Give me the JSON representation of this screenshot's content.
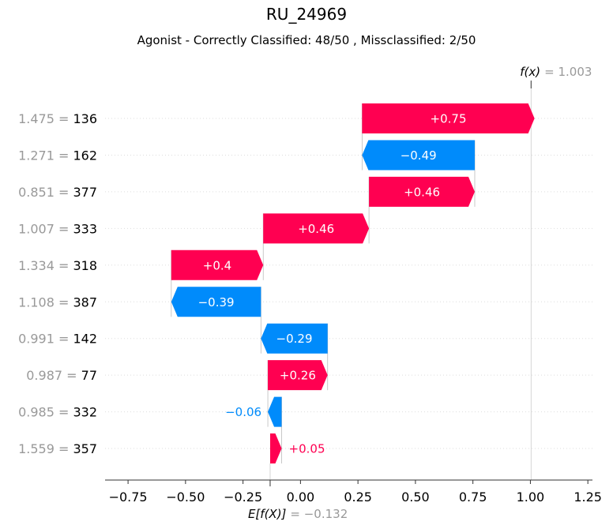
{
  "page": {
    "title": "RU_24969",
    "subtitle": "Agonist - Correctly Classified: 48/50 , Missclassified: 2/50"
  },
  "colors": {
    "positive": "#ff0051",
    "negative": "#008bfb",
    "muted": "#999999",
    "grid": "#dddddd"
  },
  "chart_data": {
    "type": "waterfall",
    "title": "RU_24969",
    "subtitle": "Agonist - Correctly Classified: 48/50 , Missclassified: 2/50",
    "fx_label": "f(x)",
    "fx_value": 1.003,
    "fx_text": "= 1.003",
    "efx_label": "E[f(X)]",
    "efx_value": -0.132,
    "efx_text": "= −0.132",
    "xlim": [
      -0.85,
      1.27
    ],
    "xticks": [
      -0.75,
      -0.5,
      -0.25,
      0.0,
      0.25,
      0.5,
      0.75,
      1.0,
      1.25
    ],
    "xtick_labels": [
      "−0.75",
      "−0.50",
      "−0.25",
      "0.00",
      "0.25",
      "0.50",
      "0.75",
      "1.00",
      "1.25"
    ],
    "features": [
      {
        "value_text": "1.475 =",
        "name": "136",
        "contribution": 0.75,
        "label": "+0.75"
      },
      {
        "value_text": "1.271 =",
        "name": "162",
        "contribution": -0.49,
        "label": "−0.49"
      },
      {
        "value_text": "0.851 =",
        "name": "377",
        "contribution": 0.46,
        "label": "+0.46"
      },
      {
        "value_text": "1.007 =",
        "name": "333",
        "contribution": 0.46,
        "label": "+0.46"
      },
      {
        "value_text": "1.334 =",
        "name": "318",
        "contribution": 0.4,
        "label": "+0.4"
      },
      {
        "value_text": "1.108 =",
        "name": "387",
        "contribution": -0.39,
        "label": "−0.39"
      },
      {
        "value_text": "0.991 =",
        "name": "142",
        "contribution": -0.29,
        "label": "−0.29"
      },
      {
        "value_text": "0.987 =",
        "name": "77",
        "contribution": 0.26,
        "label": "+0.26"
      },
      {
        "value_text": "0.985 =",
        "name": "332",
        "contribution": -0.06,
        "label": "−0.06"
      },
      {
        "value_text": "1.559 =",
        "name": "357",
        "contribution": 0.05,
        "label": "+0.05"
      }
    ]
  }
}
